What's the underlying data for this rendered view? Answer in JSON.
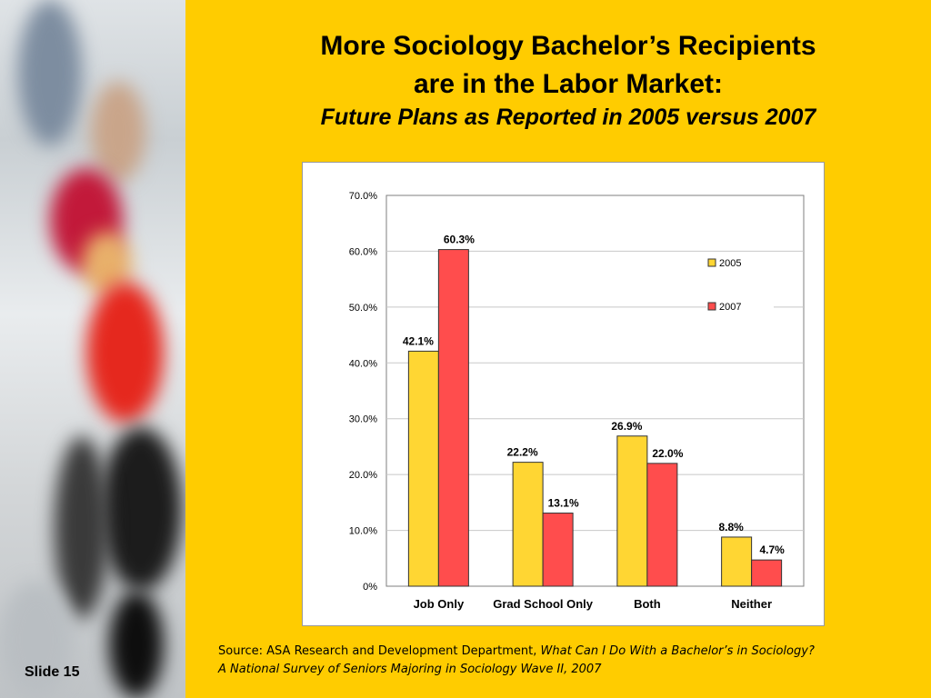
{
  "slide": {
    "title_line1": "More Sociology Bachelor’s Recipients",
    "title_line2": "are in the Labor Market:",
    "subtitle": "Future Plans as Reported in 2005 versus 2007",
    "slide_number": "Slide 15",
    "source_prefix": "Source: ASA Research and Development Department, ",
    "source_title_1": "What Can I Do With a Bachelor’s in Sociology?",
    "source_title_2": "A National Survey of Seniors Majoring in Sociology Wave II",
    "source_year": ", 2007"
  },
  "colors": {
    "background": "#ffcc00",
    "series_2005": "#ffd633",
    "series_2007": "#ff4d4d"
  },
  "chart_data": {
    "type": "bar",
    "categories": [
      "Job Only",
      "Grad School Only",
      "Both",
      "Neither"
    ],
    "series": [
      {
        "name": "2005",
        "values": [
          42.1,
          22.2,
          26.9,
          8.8
        ],
        "labels": [
          "42.1%",
          "22.2%",
          "26.9%",
          "8.8%"
        ]
      },
      {
        "name": "2007",
        "values": [
          60.3,
          13.1,
          22.0,
          4.7
        ],
        "labels": [
          "60.3%",
          "13.1%",
          "22.0%",
          "4.7%"
        ]
      }
    ],
    "ylim": [
      0,
      70
    ],
    "yticks": [
      "0%",
      "10.0%",
      "20.0%",
      "30.0%",
      "40.0%",
      "50.0%",
      "60.0%",
      "70.0%"
    ],
    "grid": true,
    "legend": "right"
  }
}
